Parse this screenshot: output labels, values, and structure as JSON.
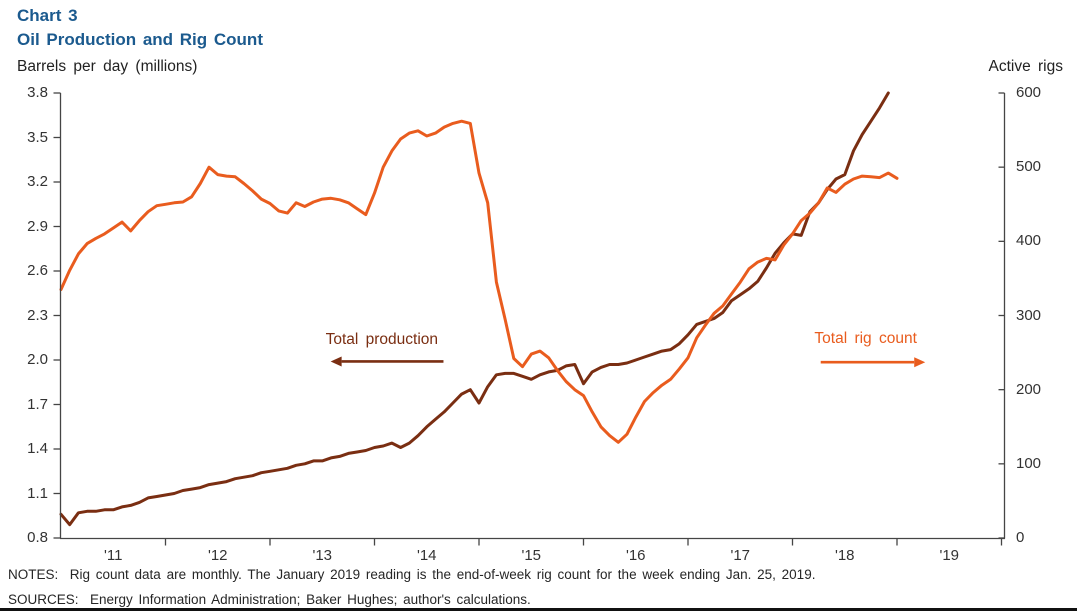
{
  "header": {
    "chart_label": "Chart 3",
    "title": "Oil Production and Rig Count"
  },
  "footer": {
    "notes": "NOTES:  Rig count data are monthly. The January 2019 reading is the end-of-week rig count for the week ending Jan. 25, 2019.",
    "sources": "SOURCES:  Energy Information Administration; Baker Hughes; author's calculations."
  },
  "colors": {
    "title_blue": "#1B5A8E",
    "production_brown": "#7A2E12",
    "rig_orange": "#E95C1E",
    "axis_gray": "#454545"
  },
  "chart_data": {
    "type": "line",
    "title": "Oil Production and Rig Count",
    "grid": "off",
    "x_axis": {
      "labels": [
        "'11",
        "'12",
        "'13",
        "'14",
        "'15",
        "'16",
        "'17",
        "'18",
        "'19"
      ],
      "range_years": [
        2011,
        2020
      ]
    },
    "y_left": {
      "label": "Barrels per day (millions)",
      "lim": [
        0.8,
        3.8
      ],
      "ticks": [
        "3.8",
        "3.5",
        "3.2",
        "2.9",
        "2.6",
        "2.3",
        "2.0",
        "1.7",
        "1.4",
        "1.1",
        "0.8"
      ]
    },
    "y_right": {
      "label": "Active rigs",
      "lim": [
        0,
        600
      ],
      "ticks": [
        "600",
        "500",
        "400",
        "300",
        "200",
        "100",
        "0"
      ]
    },
    "series": [
      {
        "name": "Total production",
        "axis": "left",
        "color": "#7A2E12",
        "start_year": 2011,
        "frequency": "monthly",
        "values": [
          0.96,
          0.89,
          0.97,
          0.98,
          0.98,
          0.99,
          0.99,
          1.01,
          1.02,
          1.04,
          1.07,
          1.08,
          1.09,
          1.1,
          1.12,
          1.13,
          1.14,
          1.16,
          1.17,
          1.18,
          1.2,
          1.21,
          1.22,
          1.24,
          1.25,
          1.26,
          1.27,
          1.29,
          1.3,
          1.32,
          1.32,
          1.34,
          1.35,
          1.37,
          1.38,
          1.39,
          1.41,
          1.42,
          1.44,
          1.41,
          1.44,
          1.49,
          1.55,
          1.6,
          1.65,
          1.71,
          1.77,
          1.8,
          1.71,
          1.82,
          1.9,
          1.91,
          1.91,
          1.89,
          1.87,
          1.9,
          1.92,
          1.93,
          1.96,
          1.97,
          1.84,
          1.92,
          1.95,
          1.97,
          1.97,
          1.98,
          2.0,
          2.02,
          2.04,
          2.06,
          2.07,
          2.11,
          2.17,
          2.24,
          2.26,
          2.28,
          2.32,
          2.4,
          2.44,
          2.48,
          2.53,
          2.62,
          2.72,
          2.79,
          2.85,
          2.84,
          3.0,
          3.06,
          3.15,
          3.22,
          3.25,
          3.41,
          3.52,
          3.61,
          3.7,
          3.8
        ]
      },
      {
        "name": "Total rig count",
        "axis": "right",
        "color": "#E95C1E",
        "start_year": 2011,
        "frequency": "monthly",
        "values": [
          335,
          361,
          383,
          397,
          404,
          410,
          418,
          426,
          414,
          428,
          440,
          448,
          450,
          452,
          453,
          460,
          478,
          500,
          490,
          488,
          487,
          478,
          468,
          457,
          451,
          441,
          438,
          452,
          447,
          453,
          457,
          458,
          456,
          452,
          444,
          436,
          465,
          500,
          522,
          538,
          546,
          549,
          542,
          546,
          554,
          559,
          562,
          559,
          492,
          452,
          345,
          295,
          242,
          231,
          248,
          252,
          243,
          226,
          211,
          200,
          192,
          170,
          150,
          138,
          129,
          140,
          163,
          184,
          196,
          206,
          214,
          228,
          243,
          270,
          287,
          303,
          313,
          329,
          345,
          363,
          372,
          377,
          375,
          395,
          410,
          428,
          438,
          452,
          472,
          466,
          477,
          484,
          488,
          487,
          486,
          492,
          485
        ]
      }
    ],
    "annotations": [
      {
        "text": "Total production",
        "color": "#7A2E12",
        "axis": "left",
        "text_center_x": 2014.07,
        "text_center_y": 2.13,
        "arrow_y": 1.99,
        "arrow_from_x": 2014.66,
        "arrow_to_x": 2013.58,
        "direction": "left"
      },
      {
        "text": "Total rig count",
        "color": "#E95C1E",
        "axis": "right",
        "text_center_x": 2018.7,
        "text_center_y": 267,
        "arrow_y": 237,
        "arrow_from_x": 2018.27,
        "arrow_to_x": 2019.27,
        "direction": "right"
      }
    ]
  }
}
